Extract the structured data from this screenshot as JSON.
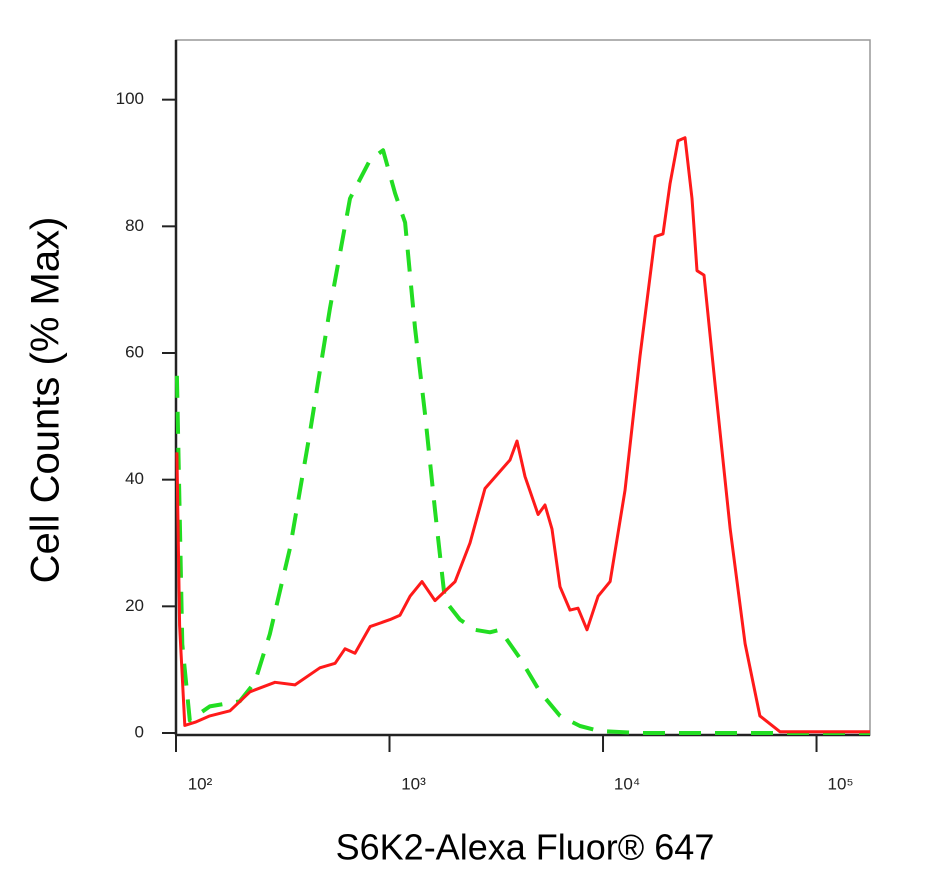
{
  "chart_data": {
    "type": "line",
    "xlabel": "S6K2-Alexa Fluor® 647",
    "ylabel": "Cell Counts (% Max)",
    "xscale": "log",
    "xlim": [
      100,
      178000
    ],
    "ylim": [
      0,
      105
    ],
    "xticks": [
      {
        "value": 100,
        "label": "10²"
      },
      {
        "value": 1000,
        "label": "10³"
      },
      {
        "value": 10000,
        "label": "10⁴"
      },
      {
        "value": 100000,
        "label": "10⁵"
      }
    ],
    "yticks": [
      0,
      20,
      40,
      60,
      80,
      100
    ],
    "grid": false,
    "series": [
      {
        "color": "#ff1a1a",
        "dash": false,
        "x": [
          101,
          104,
          110,
          123,
          144,
          179,
          222,
          291,
          361,
          472,
          556,
          619,
          689,
          811,
          1005,
          1120,
          1248,
          1420,
          1633,
          1820,
          2028,
          2383,
          2801,
          3293,
          3666,
          3953,
          4313,
          4963,
          5348,
          5768,
          6290,
          7002,
          7632,
          8414,
          9480,
          10790,
          12680,
          14900,
          17530,
          19100,
          20600,
          22450,
          24200,
          26100,
          27550,
          29700,
          33500,
          39400,
          46300,
          54300,
          67400,
          178000
        ],
        "values": [
          44.3,
          17,
          1.2,
          1.7,
          2.7,
          3.5,
          6.5,
          8,
          7.6,
          10.3,
          11,
          13.3,
          12.6,
          16.8,
          17.9,
          18.6,
          21.6,
          23.9,
          20.9,
          22.4,
          23.9,
          30,
          38.6,
          41.3,
          43.1,
          46.1,
          40.5,
          34.5,
          36,
          32.2,
          23.1,
          19.4,
          19.7,
          16.3,
          21.6,
          23.9,
          38.3,
          59.5,
          78.4,
          78.8,
          86.7,
          93.5,
          94,
          84.4,
          73,
          72.3,
          55,
          32.2,
          14.1,
          2.7,
          0.2,
          0.2
        ]
      },
      {
        "color": "#22dd22",
        "dash": true,
        "x": [
          101,
          107,
          116,
          144,
          199,
          234,
          275,
          342,
          424,
          526,
          653,
          811,
          933,
          1062,
          1183,
          1316,
          1466,
          1633,
          1820,
          2138,
          2514,
          2956,
          3293,
          4086,
          5070,
          6290,
          7800,
          9680,
          14900,
          178000
        ],
        "values": [
          56.4,
          14,
          2,
          4.2,
          5,
          8,
          15.6,
          29.2,
          47.4,
          67,
          84.4,
          90.5,
          92,
          85.2,
          80.6,
          64,
          50.4,
          35.2,
          20.9,
          17.9,
          16.3,
          15.9,
          16.3,
          11.8,
          6.5,
          2.7,
          1.1,
          0.3,
          0,
          0
        ]
      }
    ]
  }
}
